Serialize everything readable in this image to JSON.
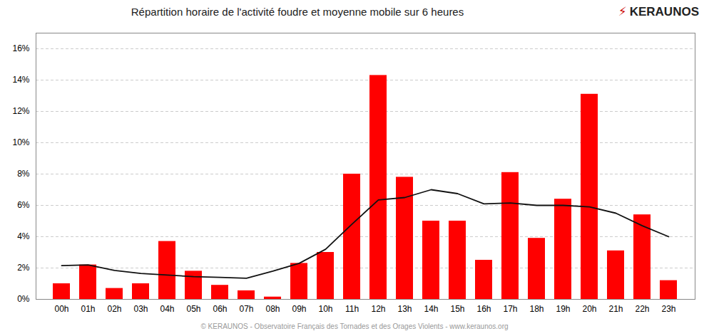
{
  "chart_data": {
    "type": "bar",
    "title": "Répartition horaire de l'activité foudre et moyenne mobile sur 6 heures",
    "caption": "© KERAUNOS - Observatoire Français des Tornades et des Orages Violents - www.keraunos.org",
    "annotations": [
      {
        "text": "⚡",
        "color": "#cc0000"
      },
      {
        "text": "KERAUNOS"
      }
    ],
    "categories": [
      "00h",
      "01h",
      "02h",
      "03h",
      "04h",
      "05h",
      "06h",
      "07h",
      "08h",
      "09h",
      "10h",
      "11h",
      "12h",
      "13h",
      "14h",
      "15h",
      "16h",
      "17h",
      "18h",
      "19h",
      "20h",
      "21h",
      "22h",
      "23h"
    ],
    "series": [
      {
        "type": "bar",
        "color": "#ff0000",
        "values": [
          0.01,
          0.022,
          0.007,
          0.01,
          0.037,
          0.018,
          0.009,
          0.0055,
          0.0015,
          0.023,
          0.03,
          0.08,
          0.143,
          0.078,
          0.05,
          0.05,
          0.025,
          0.081,
          0.039,
          0.064,
          0.131,
          0.031,
          0.054,
          0.012
        ]
      },
      {
        "type": "line",
        "color": "#111111",
        "values": [
          0.0215,
          0.022,
          0.0185,
          0.0165,
          0.0155,
          0.0145,
          0.014,
          0.0135,
          0.018,
          0.023,
          0.032,
          0.048,
          0.0635,
          0.065,
          0.07,
          0.0675,
          0.061,
          0.0615,
          0.06,
          0.06,
          0.059,
          0.055,
          0.047,
          0.04
        ]
      }
    ],
    "ylim": [
      0,
      0.17
    ],
    "yticks": [
      {
        "value": 0,
        "label": "0%"
      },
      {
        "value": 0.02,
        "label": "2%"
      },
      {
        "value": 0.04,
        "label": "4%"
      },
      {
        "value": 0.06,
        "label": "6%"
      },
      {
        "value": 0.08,
        "label": "8%"
      },
      {
        "value": 0.1,
        "label": "10%"
      },
      {
        "value": 0.12,
        "label": "12%"
      },
      {
        "value": 0.14,
        "label": "14%"
      },
      {
        "value": 0.16,
        "label": "16%"
      }
    ],
    "grid": true
  }
}
